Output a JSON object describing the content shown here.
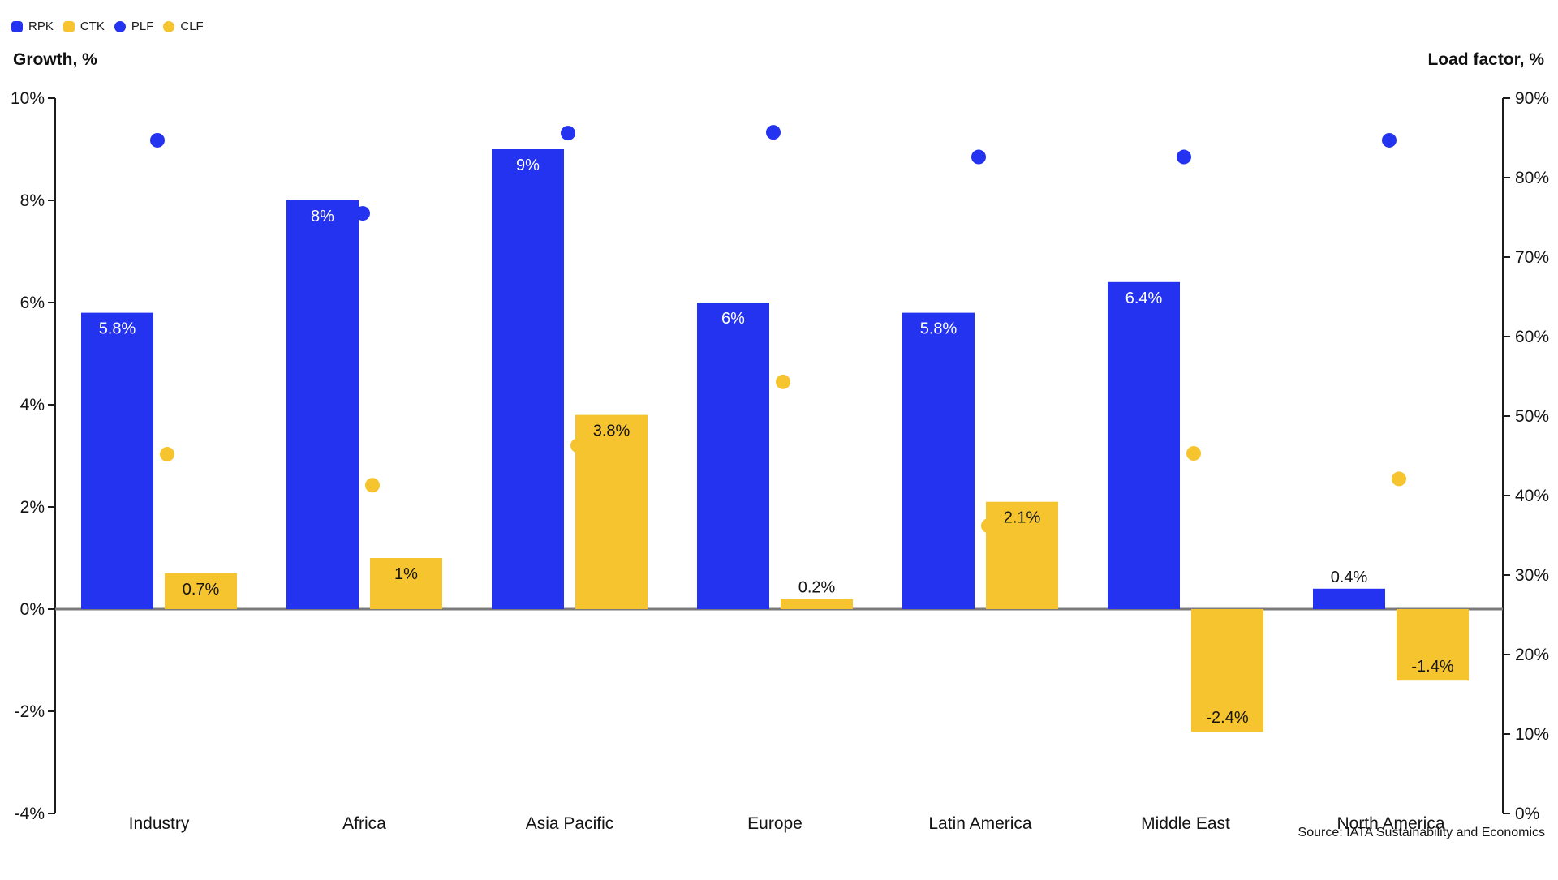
{
  "legend": {
    "items": [
      {
        "label": "RPK",
        "shape": "square",
        "color": "#2433f0"
      },
      {
        "label": "CTK",
        "shape": "square",
        "color": "#f6c42f"
      },
      {
        "label": "PLF",
        "shape": "circle",
        "color": "#2433f0"
      },
      {
        "label": "CLF",
        "shape": "circle",
        "color": "#f6c42f"
      }
    ]
  },
  "axes": {
    "left": {
      "title": "Growth, %",
      "tick_labels": [
        "10%",
        "8%",
        "6%",
        "4%",
        "2%",
        "0%",
        "-2%",
        "-4%"
      ],
      "tick_values": [
        10,
        8,
        6,
        4,
        2,
        0,
        -2,
        -4
      ]
    },
    "right": {
      "title": "Load factor, %",
      "tick_labels": [
        "90%",
        "80%",
        "70%",
        "60%",
        "50%",
        "40%",
        "30%",
        "20%",
        "10%",
        "0%"
      ],
      "tick_values": [
        90,
        80,
        70,
        60,
        50,
        40,
        30,
        20,
        10,
        0
      ]
    }
  },
  "source": "Source: IATA Sustainability and Economics",
  "colors": {
    "blue": "#2433f0",
    "yellow": "#f6c42f",
    "axis_line": "#1c1c1c",
    "zero_line": "#7a7a7a",
    "text": "#141414",
    "bar_label_light": "#ffffff"
  },
  "chart_data": {
    "type": "combo-bar-scatter",
    "categories": [
      "Industry",
      "Africa",
      "Asia Pacific",
      "Europe",
      "Latin America",
      "Middle East",
      "North America"
    ],
    "series": [
      {
        "name": "RPK",
        "render": "bar",
        "axis": "left",
        "color": "#2433f0",
        "label_color": "#ffffff",
        "values": [
          5.8,
          8,
          9,
          6,
          5.8,
          6.4,
          0.4
        ],
        "labels": [
          "5.8%",
          "8%",
          "9%",
          "6%",
          "5.8%",
          "6.4%",
          "0.4%"
        ]
      },
      {
        "name": "CTK",
        "render": "bar",
        "axis": "left",
        "color": "#f6c42f",
        "label_color": "#141414",
        "values": [
          0.7,
          1,
          3.8,
          0.2,
          2.1,
          -2.4,
          -1.4
        ],
        "labels": [
          "0.7%",
          "1%",
          "3.8%",
          "0.2%",
          "2.1%",
          "-2.4%",
          "-1.4%"
        ]
      },
      {
        "name": "PLF",
        "render": "scatter",
        "axis": "right",
        "color": "#2433f0",
        "values": [
          84.7,
          75.5,
          85.6,
          85.7,
          82.6,
          82.6,
          84.7
        ]
      },
      {
        "name": "CLF",
        "render": "scatter",
        "axis": "right",
        "color": "#f6c42f",
        "values": [
          45.2,
          41.3,
          46.3,
          54.3,
          36.2,
          45.3,
          42.1
        ]
      }
    ],
    "left_ylim": [
      -4,
      10
    ],
    "right_ylim": [
      0,
      90
    ],
    "grid": false,
    "legend_position": "top-left"
  }
}
